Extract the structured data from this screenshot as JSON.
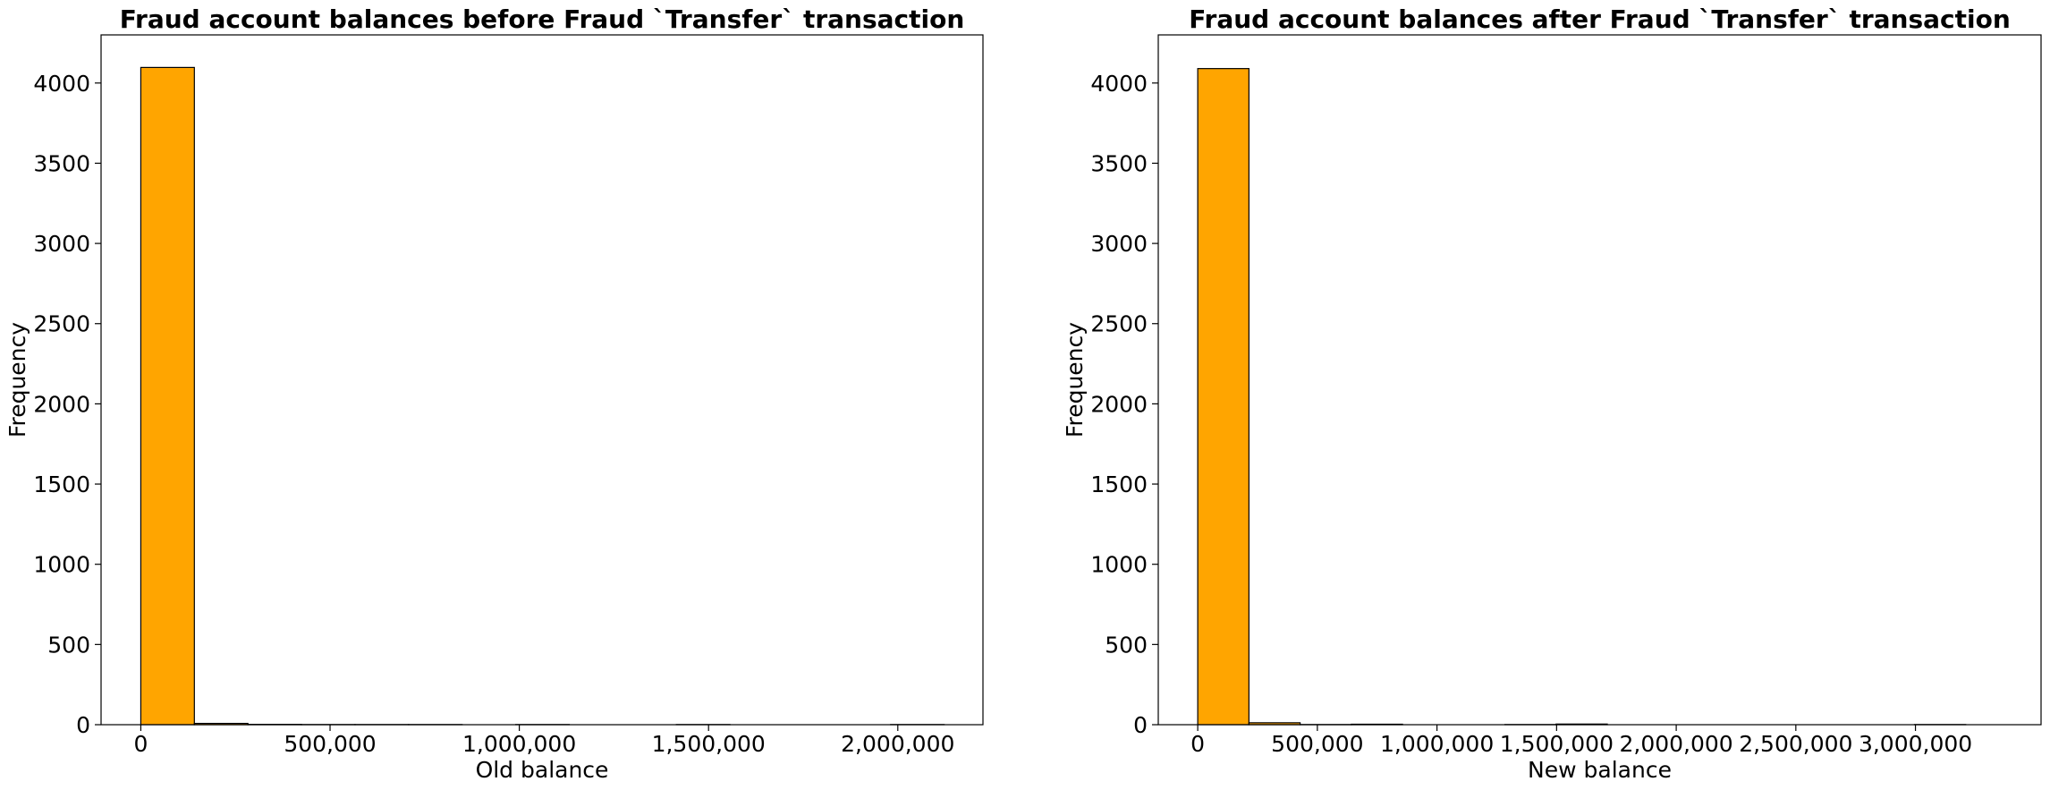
{
  "chart_data": [
    {
      "type": "bar",
      "title": "Fraud account balances before Fraud `Transfer` transaction",
      "xlabel": "Old balance",
      "ylabel": "Frequency",
      "bar_color": "#FFA500",
      "edge_color": "#000000",
      "grid": false,
      "xlim": [
        -105000,
        2225000
      ],
      "ylim": [
        0,
        4300
      ],
      "x_ticks": [
        0,
        500000,
        1000000,
        1500000,
        2000000
      ],
      "x_tick_labels": [
        "0",
        "500,000",
        "1,000,000",
        "1,500,000",
        "2,000,000"
      ],
      "y_ticks": [
        0,
        500,
        1000,
        1500,
        2000,
        2500,
        3000,
        3500,
        4000
      ],
      "y_tick_labels": [
        "0",
        "500",
        "1000",
        "1500",
        "2000",
        "2500",
        "3000",
        "3500",
        "4000"
      ],
      "bins": [
        {
          "x0": 0,
          "x1": 141500,
          "count": 4097
        },
        {
          "x0": 141500,
          "x1": 283000,
          "count": 8
        },
        {
          "x0": 283000,
          "x1": 424500,
          "count": 2
        },
        {
          "x0": 424500,
          "x1": 566000,
          "count": 1
        },
        {
          "x0": 566000,
          "x1": 707500,
          "count": 1
        },
        {
          "x0": 707500,
          "x1": 849000,
          "count": 1
        },
        {
          "x0": 849000,
          "x1": 990500,
          "count": 0
        },
        {
          "x0": 990500,
          "x1": 1132000,
          "count": 1
        },
        {
          "x0": 1132000,
          "x1": 1273500,
          "count": 0
        },
        {
          "x0": 1273500,
          "x1": 1415000,
          "count": 0
        },
        {
          "x0": 1415000,
          "x1": 1556500,
          "count": 1
        },
        {
          "x0": 1556500,
          "x1": 1698000,
          "count": 0
        },
        {
          "x0": 1698000,
          "x1": 1839500,
          "count": 0
        },
        {
          "x0": 1839500,
          "x1": 1981000,
          "count": 0
        },
        {
          "x0": 1981000,
          "x1": 2122500,
          "count": 1
        }
      ]
    },
    {
      "type": "bar",
      "title": "Fraud account balances after Fraud `Transfer` transaction",
      "xlabel": "New balance",
      "ylabel": "Frequency",
      "bar_color": "#FFA500",
      "edge_color": "#000000",
      "grid": false,
      "xlim": [
        -165000,
        3525000
      ],
      "ylim": [
        0,
        4300
      ],
      "x_ticks": [
        0,
        500000,
        1000000,
        1500000,
        2000000,
        2500000,
        3000000
      ],
      "x_tick_labels": [
        "0",
        "500,000",
        "1,000,000",
        "1,500,000",
        "2,000,000",
        "2,500,000",
        "3,000,000"
      ],
      "y_ticks": [
        0,
        500,
        1000,
        1500,
        2000,
        2500,
        3000,
        3500,
        4000
      ],
      "y_tick_labels": [
        "0",
        "500",
        "1000",
        "1500",
        "2000",
        "2500",
        "3000",
        "3500",
        "4000"
      ],
      "bins": [
        {
          "x0": 0,
          "x1": 214000,
          "count": 4090
        },
        {
          "x0": 214000,
          "x1": 428000,
          "count": 12
        },
        {
          "x0": 428000,
          "x1": 642000,
          "count": 1
        },
        {
          "x0": 642000,
          "x1": 856000,
          "count": 3
        },
        {
          "x0": 856000,
          "x1": 1070000,
          "count": 0
        },
        {
          "x0": 1070000,
          "x1": 1284000,
          "count": 0
        },
        {
          "x0": 1284000,
          "x1": 1498000,
          "count": 1
        },
        {
          "x0": 1498000,
          "x1": 1712000,
          "count": 4
        },
        {
          "x0": 1712000,
          "x1": 1926000,
          "count": 0
        },
        {
          "x0": 1926000,
          "x1": 2140000,
          "count": 0
        },
        {
          "x0": 2140000,
          "x1": 2354000,
          "count": 0
        },
        {
          "x0": 2354000,
          "x1": 2568000,
          "count": 0
        },
        {
          "x0": 2568000,
          "x1": 2782000,
          "count": 0
        },
        {
          "x0": 2782000,
          "x1": 2996000,
          "count": 0
        },
        {
          "x0": 2996000,
          "x1": 3210000,
          "count": 1
        }
      ]
    }
  ]
}
